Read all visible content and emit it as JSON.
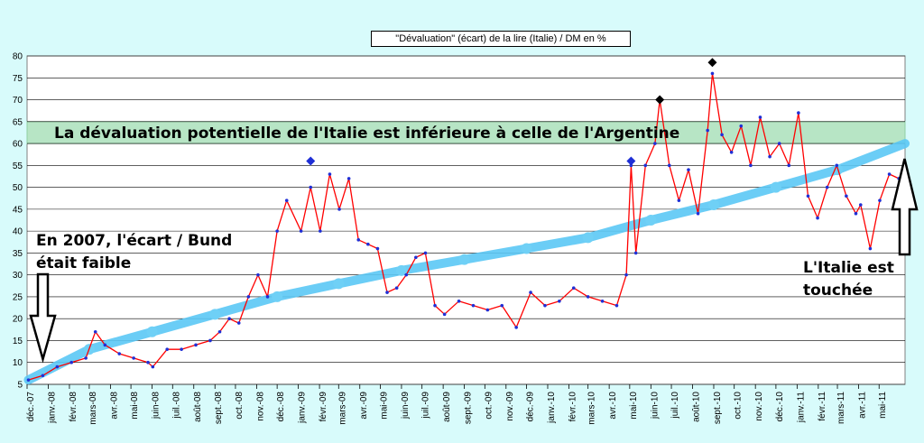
{
  "chart_data": {
    "type": "line",
    "title": "\"Dévaluation\"  (écart)  de la lire (Italie) / DM en %",
    "xlabel": "",
    "ylabel": "",
    "ylim": [
      5,
      80
    ],
    "yticks": [
      5,
      10,
      15,
      20,
      25,
      30,
      35,
      40,
      45,
      50,
      55,
      60,
      65,
      70,
      75,
      80
    ],
    "grid": true,
    "x_tick_labels": [
      "déc.-07",
      "janv.-08",
      "févr.-08",
      "mars-08",
      "avr.-08",
      "mai-08",
      "juin-08",
      "juil.-08",
      "août-08",
      "sept.-08",
      "oct.-08",
      "nov.-08",
      "déc.-08",
      "janv.-09",
      "févr.-09",
      "mars-09",
      "avr.-09",
      "mai-09",
      "juin-09",
      "juil.-09",
      "août-09",
      "sept.-09",
      "oct.-09",
      "nov.-09",
      "déc.-09",
      "janv.-10",
      "févr.-10",
      "mars-10",
      "avr.-10",
      "mai-10",
      "juin-10",
      "juil.-10",
      "août-10",
      "sept.-10",
      "oct.-10",
      "nov.-10",
      "déc.-10",
      "janv.-11",
      "févr.-11",
      "mars-11",
      "avr.-11",
      "mai-11"
    ],
    "series": [
      {
        "color": "#ff0000",
        "marker_color": "#1f2fd6",
        "x": [
          "2007-12-03",
          "2007-12-24",
          "2008-01-14",
          "2008-02-04",
          "2008-02-25",
          "2008-03-10",
          "2008-03-24",
          "2008-04-14",
          "2008-05-05",
          "2008-05-26",
          "2008-06-02",
          "2008-06-23",
          "2008-07-14",
          "2008-08-04",
          "2008-08-25",
          "2008-09-08",
          "2008-09-22",
          "2008-10-06",
          "2008-10-20",
          "2008-11-03",
          "2008-11-17",
          "2008-12-01",
          "2008-12-15",
          "2009-01-05",
          "2009-01-19",
          "2009-02-02",
          "2009-02-16",
          "2009-03-02",
          "2009-03-16",
          "2009-03-30",
          "2009-04-13",
          "2009-04-27",
          "2009-05-11",
          "2009-05-25",
          "2009-06-08",
          "2009-06-22",
          "2009-07-06",
          "2009-07-20",
          "2009-08-03",
          "2009-08-24",
          "2009-09-14",
          "2009-10-05",
          "2009-10-26",
          "2009-11-16",
          "2009-12-07",
          "2009-12-28",
          "2010-01-18",
          "2010-02-08",
          "2010-03-01",
          "2010-03-22",
          "2010-04-12",
          "2010-04-26",
          "2010-05-03",
          "2010-05-10",
          "2010-05-24",
          "2010-06-07",
          "2010-06-14",
          "2010-06-28",
          "2010-07-12",
          "2010-07-26",
          "2010-08-09",
          "2010-08-23",
          "2010-08-30",
          "2010-09-13",
          "2010-09-27",
          "2010-10-11",
          "2010-10-25",
          "2010-11-08",
          "2010-11-22",
          "2010-12-06",
          "2010-12-20",
          "2011-01-03",
          "2011-01-17",
          "2011-01-31",
          "2011-02-14",
          "2011-02-28",
          "2011-03-14",
          "2011-03-28",
          "2011-04-04",
          "2011-04-18",
          "2011-05-02",
          "2011-05-16",
          "2011-05-30"
        ],
        "y": [
          6,
          7,
          9,
          10,
          11,
          17,
          14,
          12,
          11,
          10,
          9,
          13,
          13,
          14,
          15,
          17,
          20,
          19,
          25,
          30,
          25,
          40,
          47,
          40,
          50,
          40,
          53,
          45,
          52,
          38,
          37,
          36,
          26,
          27,
          30,
          34,
          35,
          23,
          21,
          24,
          23,
          22,
          23,
          18,
          26,
          23,
          24,
          27,
          25,
          24,
          23,
          30,
          55,
          35,
          55,
          60,
          70,
          55,
          47,
          54,
          44,
          63,
          76,
          62,
          58,
          64,
          55,
          66,
          57,
          60,
          55,
          67,
          48,
          43,
          50,
          55,
          48,
          44,
          46,
          36,
          47,
          53,
          52
        ]
      }
    ],
    "trend_band": {
      "color": "#5bc8f5",
      "x": [
        "2007-12-03",
        "2008-03-01",
        "2008-06-01",
        "2008-09-01",
        "2008-12-01",
        "2009-03-01",
        "2009-06-01",
        "2009-09-01",
        "2009-12-01",
        "2010-03-01",
        "2010-06-01",
        "2010-09-01",
        "2010-12-01",
        "2011-03-01",
        "2011-06-08"
      ],
      "y": [
        6,
        13,
        17,
        21,
        25,
        28,
        31,
        33.5,
        36,
        38.5,
        42.5,
        46,
        50,
        54,
        60
      ]
    },
    "peak_markers": [
      {
        "x": "2009-01-19",
        "y": 56,
        "color": "#1f2fd6"
      },
      {
        "x": "2010-05-03",
        "y": 56,
        "color": "#1f2fd6"
      },
      {
        "x": "2010-06-14",
        "y": 70,
        "color": "#000000"
      },
      {
        "x": "2010-08-30",
        "y": 78.5,
        "color": "#000000"
      }
    ],
    "shaded_band": {
      "y": [
        60,
        65
      ],
      "color": "#b7e5c5"
    },
    "annotations": [
      "La dévaluation potentielle de l'Italie est inférieure à celle de l'Argentine",
      "En 2007, l'écart / Bund",
      "était faible",
      "L'Italie est",
      "touchée"
    ]
  }
}
